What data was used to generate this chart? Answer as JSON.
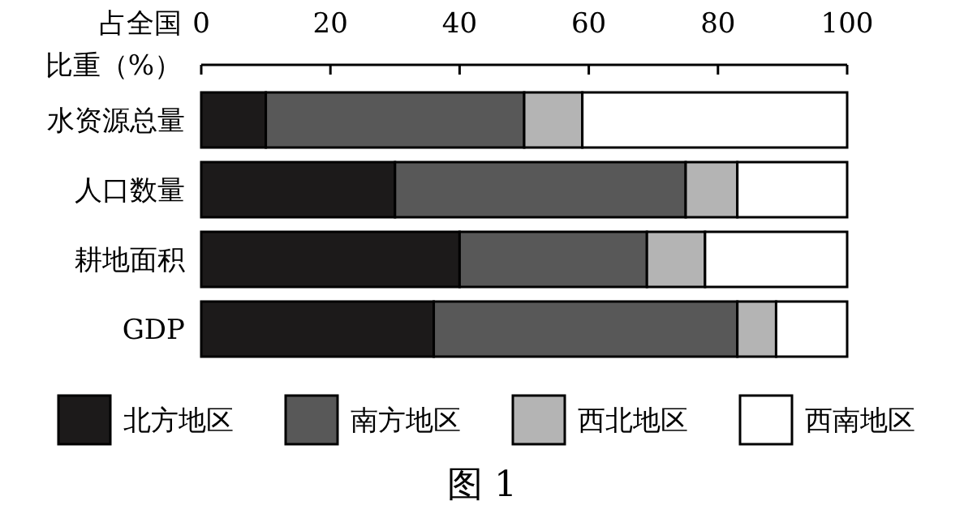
{
  "chart_data": {
    "type": "bar",
    "orientation": "horizontal",
    "stacked": true,
    "xlabel": "占全国比重（%）",
    "categories": [
      "水资源总量",
      "人口数量",
      "耕地面积",
      "GDP"
    ],
    "series": [
      {
        "name": "北方地区",
        "color": "#1c1a1a",
        "values": [
          10,
          30,
          40,
          36
        ]
      },
      {
        "name": "南方地区",
        "color": "#585858",
        "values": [
          40,
          45,
          29,
          47
        ]
      },
      {
        "name": "西北地区",
        "color": "#b4b4b4",
        "values": [
          9,
          8,
          9,
          6
        ]
      },
      {
        "name": "西南地区",
        "color": "#ffffff",
        "values": [
          41,
          17,
          22,
          11
        ]
      }
    ],
    "xlim": [
      0,
      100
    ],
    "xticks": [
      0,
      20,
      40,
      60,
      80,
      100
    ],
    "legend": "bottom",
    "grid": false,
    "annotations": [
      "图 1"
    ]
  }
}
